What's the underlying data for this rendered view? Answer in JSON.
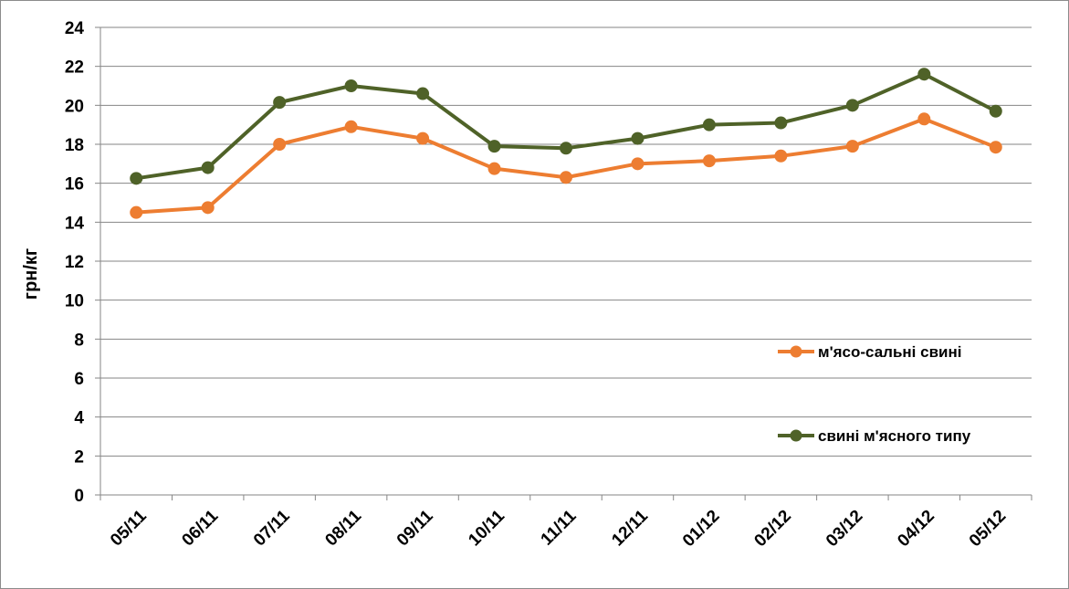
{
  "chart_data": {
    "type": "line",
    "title": "",
    "xlabel": "",
    "ylabel": "грн/кг",
    "categories": [
      "05/11",
      "06/11",
      "07/11",
      "08/11",
      "09/11",
      "10/11",
      "11/11",
      "12/11",
      "01/12",
      "02/12",
      "03/12",
      "04/12",
      "05/12"
    ],
    "ylim": [
      0,
      24
    ],
    "yticks": [
      0,
      2,
      4,
      6,
      8,
      10,
      12,
      14,
      16,
      18,
      20,
      22,
      24
    ],
    "grid": true,
    "legend_position": "right",
    "series": [
      {
        "name": "м'ясо-сальні свині",
        "color": "#ED7D31",
        "values": [
          14.5,
          14.75,
          18.0,
          18.9,
          18.3,
          16.75,
          16.3,
          17.0,
          17.15,
          17.4,
          17.9,
          19.3,
          17.85
        ]
      },
      {
        "name": "свині м'ясного типу",
        "color": "#4F6228",
        "values": [
          16.25,
          16.8,
          20.15,
          21.0,
          20.6,
          17.9,
          17.8,
          18.3,
          19.0,
          19.1,
          20.0,
          21.6,
          19.7
        ]
      }
    ]
  }
}
